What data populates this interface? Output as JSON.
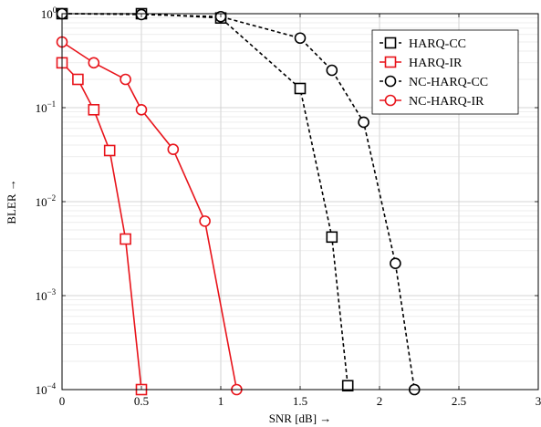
{
  "chart_data": {
    "type": "line",
    "xlabel": "SNR [dB] →",
    "ylabel": "BLER →",
    "xlim": [
      0,
      3
    ],
    "ylim": [
      0.0001,
      1
    ],
    "yscale": "log",
    "grid": true,
    "legend_position": "top-right",
    "x_ticks": [
      "0",
      "0.5",
      "1",
      "1.5",
      "2",
      "2.5",
      "3"
    ],
    "y_ticks": [
      {
        "base": "10",
        "exp": "0"
      },
      {
        "base": "10",
        "exp": "−1"
      },
      {
        "base": "10",
        "exp": "−2"
      },
      {
        "base": "10",
        "exp": "−3"
      },
      {
        "base": "10",
        "exp": "−4"
      }
    ],
    "series": [
      {
        "name": "HARQ-CC",
        "color": "#000000",
        "marker": "square",
        "dash": true,
        "x": [
          0,
          0.5,
          1,
          1.5,
          1.7,
          1.8
        ],
        "y": [
          1,
          1,
          0.9,
          0.16,
          0.0042,
          0.00011
        ]
      },
      {
        "name": "HARQ-IR",
        "color": "#e8141b",
        "marker": "square",
        "dash": false,
        "x": [
          0,
          0.1,
          0.2,
          0.3,
          0.4,
          0.5
        ],
        "y": [
          0.3,
          0.2,
          0.095,
          0.035,
          0.004,
          0.0001
        ]
      },
      {
        "name": "NC-HARQ-CC",
        "color": "#000000",
        "marker": "circle",
        "dash": true,
        "x": [
          0,
          0.5,
          1,
          1.5,
          1.7,
          1.9,
          2.1,
          2.22
        ],
        "y": [
          1,
          0.98,
          0.93,
          0.55,
          0.25,
          0.07,
          0.0022,
          0.0001
        ]
      },
      {
        "name": "NC-HARQ-IR",
        "color": "#e8141b",
        "marker": "circle",
        "dash": false,
        "x": [
          0,
          0.2,
          0.4,
          0.5,
          0.7,
          0.9,
          1.1
        ],
        "y": [
          0.5,
          0.3,
          0.2,
          0.095,
          0.036,
          0.0062,
          0.0001
        ]
      }
    ]
  }
}
